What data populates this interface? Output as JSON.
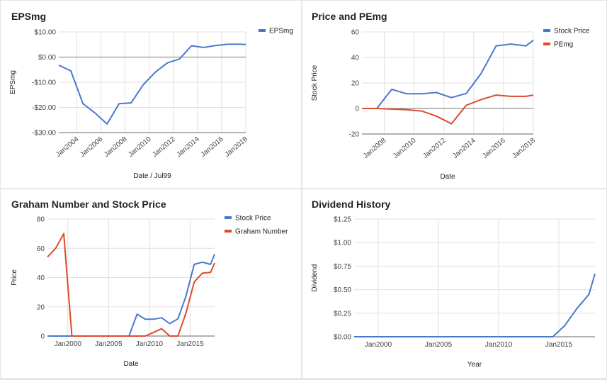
{
  "chart_data": [
    {
      "type": "line",
      "title": "EPSmg",
      "xlabel": "Date / Jul99",
      "ylabel": "EPSmg",
      "ylim": [
        -30,
        10
      ],
      "y_ticks": [
        10,
        0,
        -10,
        -20,
        -30
      ],
      "y_tick_labels": [
        "$10.00",
        "$0.00",
        "-$10.00",
        "-$20.00",
        "-$30.00"
      ],
      "xlim": [
        2002.5,
        2018.0
      ],
      "x_ticks": [
        2004,
        2006,
        2008,
        2010,
        2012,
        2014,
        2016,
        2018
      ],
      "x_tick_labels": [
        "Jan2004",
        "Jan2006",
        "Jan2008",
        "Jan2010",
        "Jan2012",
        "Jan2014",
        "Jan2016",
        "Jan2018"
      ],
      "x_tick_rotated": true,
      "zero_line": true,
      "grid": true,
      "legend": "right",
      "series": [
        {
          "name": "EPSmg",
          "color": "#4a78cf",
          "x": [
            2002.5,
            2003.5,
            2004.5,
            2005.5,
            2006.5,
            2007.5,
            2008.5,
            2009.5,
            2010.5,
            2011.5,
            2012.5,
            2013.5,
            2014.5,
            2015.5,
            2016.5,
            2017.5,
            2018.0
          ],
          "y": [
            -3.2,
            -5.5,
            -18.5,
            -22.2,
            -26.6,
            -18.5,
            -18.2,
            -11,
            -6,
            -2.3,
            -0.8,
            4.5,
            3.8,
            4.6,
            5.1,
            5.1,
            5.0
          ]
        }
      ]
    },
    {
      "type": "line",
      "title": "Price and PEmg",
      "xlabel": "Date",
      "ylabel": "Stock Price",
      "ylim": [
        -20,
        60
      ],
      "y_ticks": [
        60,
        40,
        20,
        0,
        -20
      ],
      "y_tick_labels": [
        "60",
        "40",
        "20",
        "0",
        "-20"
      ],
      "xlim": [
        2006.5,
        2018.0
      ],
      "x_ticks": [
        2008,
        2010,
        2012,
        2014,
        2016,
        2018
      ],
      "x_tick_labels": [
        "Jan2008",
        "Jan2010",
        "Jan2012",
        "Jan2014",
        "Jan2016",
        "Jan2018"
      ],
      "x_tick_rotated": true,
      "zero_line": true,
      "grid": true,
      "legend": "right",
      "series": [
        {
          "name": "Stock Price",
          "color": "#4a78cf",
          "x": [
            2006.5,
            2007.5,
            2008.5,
            2009.5,
            2010.5,
            2011.5,
            2012.5,
            2013.5,
            2014.5,
            2015.5,
            2016.5,
            2017.5,
            2018.0
          ],
          "y": [
            0,
            0,
            15,
            11.5,
            11.5,
            12.5,
            8.5,
            11.8,
            27.5,
            49,
            50.5,
            49,
            53.5
          ]
        },
        {
          "name": "PEmg",
          "color": "#dc4b2c",
          "x": [
            2006.5,
            2007.5,
            2008.5,
            2009.5,
            2010.5,
            2011.5,
            2012.5,
            2013.5,
            2014.5,
            2015.5,
            2016.5,
            2017.5,
            2018.0
          ],
          "y": [
            0,
            0,
            -0.5,
            -1,
            -2,
            -6,
            -12,
            2.5,
            7,
            10.5,
            9.5,
            9.5,
            10.5
          ]
        }
      ]
    },
    {
      "type": "line",
      "title": "Graham Number and Stock Price",
      "xlabel": "Date",
      "ylabel": "Price",
      "ylim": [
        0,
        80
      ],
      "y_ticks": [
        80,
        60,
        40,
        20,
        0
      ],
      "y_tick_labels": [
        "80",
        "60",
        "40",
        "20",
        "0"
      ],
      "xlim": [
        1997.5,
        2018.0
      ],
      "x_ticks": [
        2000,
        2005,
        2010,
        2015
      ],
      "x_tick_labels": [
        "Jan2000",
        "Jan2005",
        "Jan2010",
        "Jan2015"
      ],
      "x_tick_rotated": false,
      "zero_line": false,
      "grid": true,
      "legend": "right",
      "series": [
        {
          "name": "Stock Price",
          "color": "#4a78cf",
          "x": [
            1997.5,
            1998.5,
            1999.5,
            2000.5,
            2001.5,
            2002.5,
            2003.5,
            2004.5,
            2005.5,
            2006.5,
            2007.5,
            2008.5,
            2009.5,
            2010.5,
            2011.5,
            2012.5,
            2013.5,
            2014.5,
            2015.5,
            2016.5,
            2017.5,
            2018.0
          ],
          "y": [
            0,
            0,
            0,
            0,
            0,
            0,
            0,
            0,
            0,
            0,
            0,
            15,
            11.5,
            11.5,
            12.5,
            8.5,
            11.8,
            27.5,
            49,
            50.5,
            49,
            56
          ]
        },
        {
          "name": "Graham Number",
          "color": "#dc4b2c",
          "x": [
            1997.5,
            1998.5,
            1999.5,
            2000.5,
            2001.5,
            2002.5,
            2003.5,
            2004.5,
            2005.5,
            2006.5,
            2007.5,
            2008.5,
            2009.5,
            2010.5,
            2011.5,
            2012.5,
            2013.5,
            2014.5,
            2015.5,
            2016.5,
            2017.5,
            2018.0
          ],
          "y": [
            54,
            60,
            70,
            0,
            0,
            0,
            0,
            0,
            0,
            0,
            0,
            0,
            0,
            2.5,
            5,
            0,
            0,
            16,
            37,
            43,
            43.5,
            50
          ]
        }
      ]
    },
    {
      "type": "line",
      "title": "Dividend History",
      "xlabel": "Year",
      "ylabel": "Dividend",
      "ylim": [
        0,
        1.25
      ],
      "y_ticks": [
        1.25,
        1.0,
        0.75,
        0.5,
        0.25,
        0
      ],
      "y_tick_labels": [
        "$1.25",
        "$1.00",
        "$0.75",
        "$0.50",
        "$0.25",
        "$0.00"
      ],
      "xlim": [
        1998.0,
        2018.0
      ],
      "x_ticks": [
        2000,
        2005,
        2010,
        2015
      ],
      "x_tick_labels": [
        "Jan2000",
        "Jan2005",
        "Jan2010",
        "Jan2015"
      ],
      "x_tick_rotated": false,
      "zero_line": false,
      "grid": true,
      "legend": "none",
      "series": [
        {
          "name": "",
          "color": "#4a78cf",
          "x": [
            1998.0,
            2013.5,
            2014.5,
            2015.5,
            2016.5,
            2017.5,
            2018.0
          ],
          "y": [
            0,
            0,
            0,
            0.12,
            0.3,
            0.45,
            0.67
          ]
        }
      ]
    }
  ]
}
